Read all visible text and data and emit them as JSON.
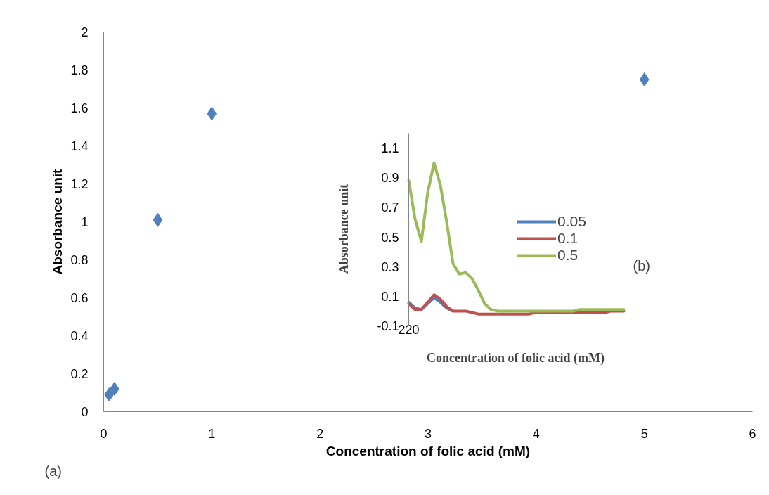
{
  "chart_data": [
    {
      "type": "scatter",
      "xlabel": "Concentration of folic acid (mM)",
      "ylabel": "Absorbance unit",
      "x": [
        0.05,
        0.1,
        0.5,
        1,
        5
      ],
      "values": [
        0.09,
        0.12,
        1.01,
        1.57,
        1.75
      ],
      "color": "#4f81bd",
      "marker": "diamond",
      "xlim": [
        0,
        6
      ],
      "xticks": [
        0,
        1,
        2,
        3,
        4,
        5,
        6
      ],
      "ylim": [
        0,
        2
      ],
      "yticks": [
        0,
        0.2,
        0.4,
        0.6,
        0.8,
        1,
        1.2,
        1.4,
        1.6,
        1.8,
        2
      ],
      "grid": false,
      "annotations": [
        "(a)"
      ]
    },
    {
      "type": "line",
      "xlabel": "Concentration of folic acid (mM)",
      "ylabel": "Absorbance unit",
      "categories": [
        "220",
        null,
        null,
        null,
        null,
        null,
        null,
        null,
        null,
        null,
        null,
        null,
        null,
        null,
        null,
        null,
        null,
        null,
        null,
        null,
        null,
        null,
        null,
        null,
        null,
        null,
        null,
        null,
        null,
        null,
        null,
        null,
        null,
        null,
        null
      ],
      "series": [
        {
          "name": "0.05",
          "color": "#4f81bd",
          "values": [
            0.06,
            0.02,
            0.01,
            0.05,
            0.09,
            0.06,
            0.02,
            0.0,
            null,
            null,
            null,
            null,
            null,
            null,
            null,
            null,
            null,
            null,
            null,
            null,
            null,
            null,
            null,
            null,
            null,
            null,
            null,
            null,
            null,
            null,
            null,
            null,
            null,
            null,
            null
          ]
        },
        {
          "name": "0.1",
          "color": "#c0504d",
          "values": [
            0.05,
            0.01,
            0.01,
            0.06,
            0.11,
            0.08,
            0.03,
            0.0,
            0.0,
            0.0,
            -0.01,
            -0.02,
            -0.02,
            -0.02,
            -0.02,
            -0.02,
            -0.02,
            -0.02,
            -0.02,
            -0.02,
            -0.01,
            -0.01,
            -0.01,
            -0.01,
            -0.01,
            -0.01,
            -0.01,
            -0.01,
            -0.01,
            -0.01,
            -0.01,
            -0.01,
            0.0,
            0.0,
            0.0
          ]
        },
        {
          "name": "0.5",
          "color": "#9bbb59",
          "values": [
            0.88,
            0.62,
            0.47,
            0.8,
            1.0,
            0.85,
            0.6,
            0.32,
            0.25,
            0.26,
            0.22,
            0.14,
            0.05,
            0.01,
            0.0,
            0.0,
            0.0,
            0.0,
            0.0,
            0.0,
            0.0,
            0.0,
            0.0,
            0.0,
            0.0,
            0.0,
            0.0,
            0.01,
            0.01,
            0.01,
            0.01,
            0.01,
            0.01,
            0.01,
            0.01
          ]
        }
      ],
      "ylim": [
        -0.1,
        1.2
      ],
      "yticks": [
        -0.1,
        0.1,
        0.3,
        0.5,
        0.7,
        0.9,
        1.1
      ],
      "legend": "right",
      "annotations": [
        "(b)"
      ]
    }
  ]
}
